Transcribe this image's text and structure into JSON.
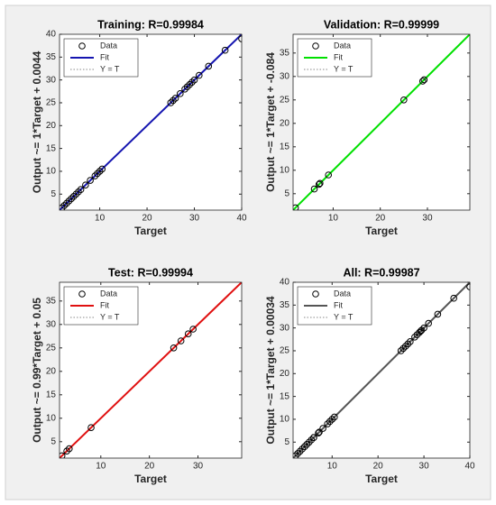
{
  "chart_data": [
    {
      "type": "scatter",
      "title": "Training: R=0.99984",
      "xlabel": "Target",
      "ylabel": "Output ~= 1*Target + 0.0044",
      "xlim": [
        1.5,
        40
      ],
      "ylim": [
        1.5,
        40
      ],
      "xticks": [
        10,
        20,
        30,
        40
      ],
      "yticks": [
        5,
        10,
        15,
        20,
        25,
        30,
        35,
        40
      ],
      "series": [
        {
          "name": "Data",
          "color": "#000000",
          "marker": "o",
          "x": [
            2,
            2.5,
            3,
            3.5,
            4,
            4.5,
            5,
            5.5,
            6,
            7,
            8,
            9,
            9.5,
            10,
            10.5,
            25,
            25.5,
            26,
            27,
            28,
            28.5,
            29,
            29.5,
            30,
            31,
            33,
            36.5,
            40
          ],
          "y": [
            2,
            2.5,
            3,
            3.5,
            4,
            4.5,
            5,
            5.5,
            6,
            7,
            8,
            9,
            9.5,
            10,
            10.5,
            25,
            25.5,
            26,
            27,
            28,
            28.5,
            29,
            29.5,
            30,
            31,
            33,
            36.5,
            39
          ]
        },
        {
          "name": "Fit",
          "color": "#1515b0",
          "linestyle": "-",
          "x": [
            1.5,
            40
          ],
          "y": [
            1.5,
            40
          ]
        },
        {
          "name": "Y = T",
          "color": "#888888",
          "linestyle": ":",
          "x": [
            1.5,
            40
          ],
          "y": [
            1.5,
            40
          ]
        }
      ]
    },
    {
      "type": "scatter",
      "title": "Validation: R=0.99999",
      "xlabel": "Target",
      "ylabel": "Output ~= 1*Target + -0.084",
      "xlim": [
        1.5,
        39
      ],
      "ylim": [
        1.5,
        39
      ],
      "xticks": [
        10,
        20,
        30
      ],
      "yticks": [
        5,
        10,
        15,
        20,
        25,
        30,
        35
      ],
      "series": [
        {
          "name": "Data",
          "color": "#000000",
          "marker": "o",
          "x": [
            2,
            6,
            7,
            7.2,
            9,
            25,
            29,
            29.3
          ],
          "y": [
            2,
            6,
            7,
            7.2,
            9,
            25,
            29,
            29.3
          ]
        },
        {
          "name": "Fit",
          "color": "#00e000",
          "linestyle": "-",
          "x": [
            1.5,
            39
          ],
          "y": [
            1.5,
            39
          ]
        },
        {
          "name": "Y = T",
          "color": "#888888",
          "linestyle": ":",
          "x": [
            1.5,
            39
          ],
          "y": [
            1.5,
            39
          ]
        }
      ]
    },
    {
      "type": "scatter",
      "title": "Test: R=0.99994",
      "xlabel": "Target",
      "ylabel": "Output ~= 0.99*Target + 0.05",
      "xlim": [
        1.5,
        39
      ],
      "ylim": [
        1.5,
        39
      ],
      "xticks": [
        10,
        20,
        30
      ],
      "yticks": [
        5,
        10,
        15,
        20,
        25,
        30,
        35
      ],
      "series": [
        {
          "name": "Data",
          "color": "#000000",
          "marker": "o",
          "x": [
            2,
            3,
            3.5,
            8,
            25,
            26.5,
            28,
            29
          ],
          "y": [
            2,
            3,
            3.5,
            8,
            25,
            26.5,
            28,
            29
          ]
        },
        {
          "name": "Fit",
          "color": "#e01010",
          "linestyle": "-",
          "x": [
            1.5,
            39
          ],
          "y": [
            1.5,
            39
          ]
        },
        {
          "name": "Y = T",
          "color": "#888888",
          "linestyle": ":",
          "x": [
            1.5,
            39
          ],
          "y": [
            1.5,
            39
          ]
        }
      ]
    },
    {
      "type": "scatter",
      "title": "All: R=0.99987",
      "xlabel": "Target",
      "ylabel": "Output ~= 1*Target + 0.00034",
      "xlim": [
        1.5,
        40
      ],
      "ylim": [
        1.5,
        40
      ],
      "xticks": [
        10,
        20,
        30,
        40
      ],
      "yticks": [
        5,
        10,
        15,
        20,
        25,
        30,
        35,
        40
      ],
      "series": [
        {
          "name": "Data",
          "color": "#000000",
          "marker": "o",
          "x": [
            2,
            2.5,
            3,
            3.5,
            4,
            4.5,
            5,
            5.5,
            6,
            6,
            7,
            7.2,
            8,
            9,
            9.5,
            10,
            10.5,
            25,
            25.5,
            26,
            26.5,
            27,
            28,
            28.5,
            29,
            29.3,
            29.5,
            30,
            31,
            33,
            36.5,
            40
          ],
          "y": [
            2,
            2.5,
            3,
            3.5,
            4,
            4.5,
            5,
            5.5,
            6,
            6,
            7,
            7.2,
            8,
            9,
            9.5,
            10,
            10.5,
            25,
            25.5,
            26,
            26.5,
            27,
            28,
            28.5,
            29,
            29.3,
            29.5,
            30,
            31,
            33,
            36.5,
            39
          ]
        },
        {
          "name": "Fit",
          "color": "#555555",
          "linestyle": "-",
          "x": [
            1.5,
            40
          ],
          "y": [
            1.5,
            40
          ]
        },
        {
          "name": "Y = T",
          "color": "#888888",
          "linestyle": ":",
          "x": [
            1.5,
            40
          ],
          "y": [
            1.5,
            40
          ]
        }
      ]
    }
  ]
}
